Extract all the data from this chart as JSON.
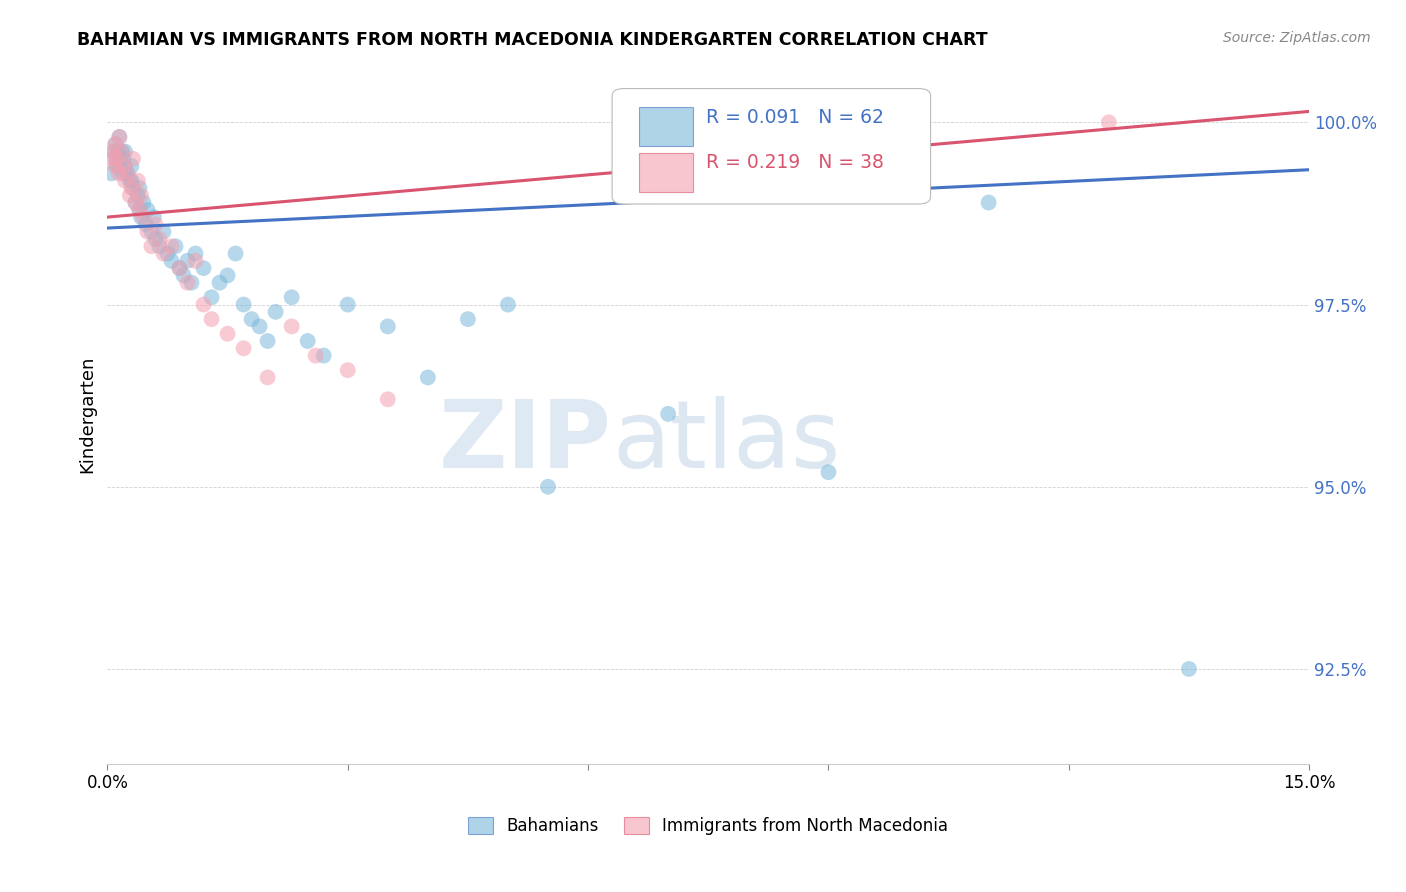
{
  "title": "BAHAMIAN VS IMMIGRANTS FROM NORTH MACEDONIA KINDERGARTEN CORRELATION CHART",
  "source": "Source: ZipAtlas.com",
  "ylabel": "Kindergarten",
  "ytick_values": [
    92.5,
    95.0,
    97.5,
    100.0
  ],
  "xmin": 0.0,
  "xmax": 15.0,
  "ymin": 91.2,
  "ymax": 100.8,
  "blue_R": 0.091,
  "blue_N": 62,
  "pink_R": 0.219,
  "pink_N": 38,
  "blue_color": "#7ab8d9",
  "pink_color": "#f4a0b0",
  "blue_line_color": "#4472c4",
  "pink_line_color": "#d9546e",
  "watermark_zip": "ZIP",
  "watermark_atlas": "atlas",
  "blue_line_x0": 0.0,
  "blue_line_x1": 15.0,
  "blue_line_y0": 98.55,
  "blue_line_y1": 99.35,
  "pink_line_x0": 0.0,
  "pink_line_x1": 15.0,
  "pink_line_y0": 98.7,
  "pink_line_y1": 100.15,
  "blue_x": [
    0.05,
    0.08,
    0.1,
    0.1,
    0.12,
    0.13,
    0.15,
    0.15,
    0.18,
    0.2,
    0.2,
    0.22,
    0.22,
    0.25,
    0.28,
    0.3,
    0.3,
    0.32,
    0.35,
    0.38,
    0.4,
    0.4,
    0.42,
    0.45,
    0.48,
    0.5,
    0.55,
    0.58,
    0.6,
    0.65,
    0.7,
    0.75,
    0.8,
    0.85,
    0.9,
    0.95,
    1.0,
    1.05,
    1.1,
    1.2,
    1.3,
    1.4,
    1.5,
    1.6,
    1.7,
    1.8,
    1.9,
    2.0,
    2.1,
    2.3,
    2.5,
    2.7,
    3.0,
    3.5,
    4.0,
    4.5,
    5.0,
    5.5,
    7.0,
    9.0,
    11.0,
    13.5
  ],
  "blue_y": [
    99.3,
    99.6,
    99.5,
    99.7,
    99.4,
    99.6,
    99.5,
    99.8,
    99.6,
    99.3,
    99.5,
    99.4,
    99.6,
    99.3,
    99.2,
    99.4,
    99.2,
    99.1,
    98.9,
    99.0,
    98.8,
    99.1,
    98.7,
    98.9,
    98.6,
    98.8,
    98.5,
    98.7,
    98.4,
    98.3,
    98.5,
    98.2,
    98.1,
    98.3,
    98.0,
    97.9,
    98.1,
    97.8,
    98.2,
    98.0,
    97.6,
    97.8,
    97.9,
    98.2,
    97.5,
    97.3,
    97.2,
    97.0,
    97.4,
    97.6,
    97.0,
    96.8,
    97.5,
    97.2,
    96.5,
    97.3,
    97.5,
    95.0,
    96.0,
    95.2,
    98.9,
    92.5
  ],
  "pink_x": [
    0.06,
    0.08,
    0.1,
    0.1,
    0.12,
    0.14,
    0.15,
    0.18,
    0.2,
    0.22,
    0.25,
    0.28,
    0.3,
    0.32,
    0.35,
    0.38,
    0.4,
    0.42,
    0.45,
    0.5,
    0.55,
    0.6,
    0.65,
    0.7,
    0.8,
    0.9,
    1.0,
    1.1,
    1.2,
    1.3,
    1.5,
    1.7,
    2.0,
    2.3,
    2.6,
    3.0,
    3.5,
    12.5
  ],
  "pink_y": [
    99.5,
    99.6,
    99.7,
    99.4,
    99.5,
    99.3,
    99.8,
    99.6,
    99.4,
    99.2,
    99.3,
    99.0,
    99.1,
    99.5,
    98.9,
    99.2,
    98.8,
    99.0,
    98.7,
    98.5,
    98.3,
    98.6,
    98.4,
    98.2,
    98.3,
    98.0,
    97.8,
    98.1,
    97.5,
    97.3,
    97.1,
    96.9,
    96.5,
    97.2,
    96.8,
    96.6,
    96.2,
    100.0
  ]
}
